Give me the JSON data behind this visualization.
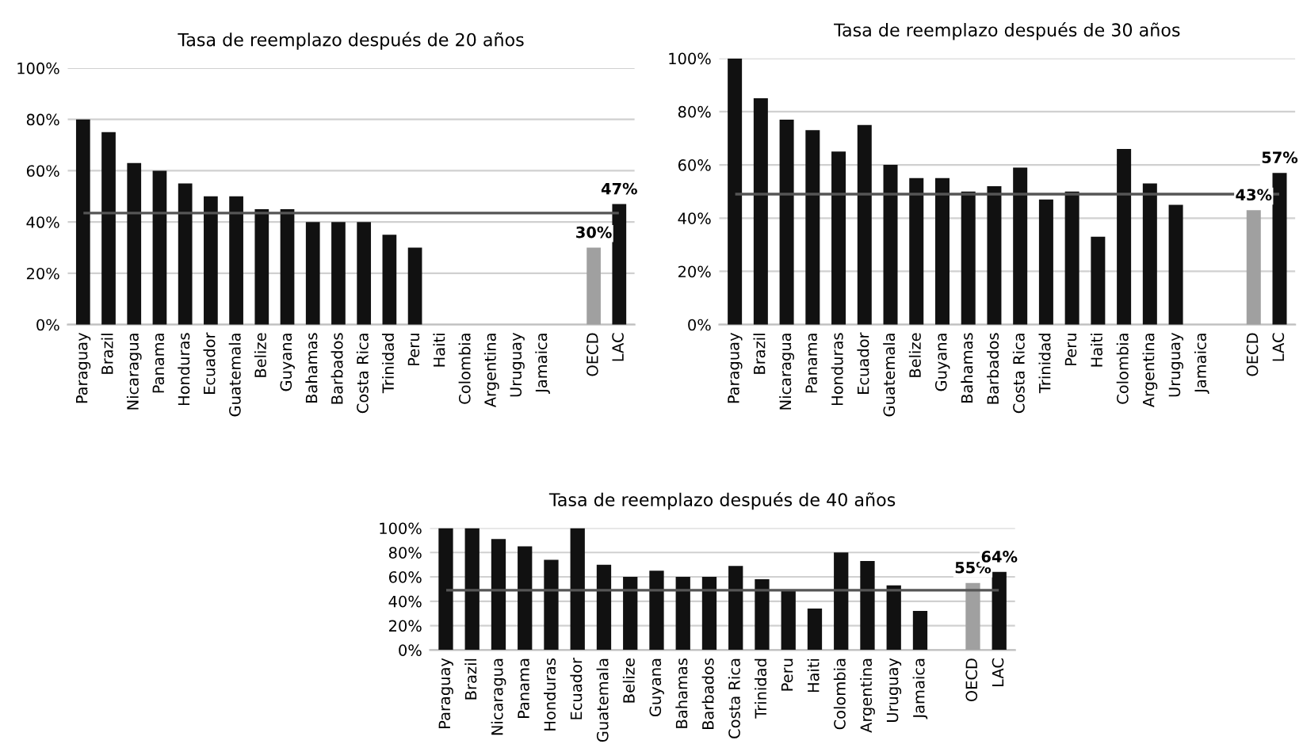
{
  "chart_data": [
    {
      "type": "bar",
      "title": "Tasa de reemplazo después de 20 años",
      "categories": [
        "Paraguay",
        "Brazil",
        "Nicaragua",
        "Panama",
        "Honduras",
        "Ecuador",
        "Guatemala",
        "Belize",
        "Guyana",
        "Bahamas",
        "Barbados",
        "Costa Rica",
        "Trinidad",
        "Peru",
        "Haiti",
        "Colombia",
        "Argentina",
        "Uruguay",
        "Jamaica",
        null,
        "OECD",
        "LAC"
      ],
      "values": [
        80,
        75,
        63,
        60,
        55,
        50,
        50,
        45,
        45,
        40,
        40,
        40,
        35,
        30,
        null,
        null,
        null,
        null,
        null,
        null,
        30,
        47
      ],
      "colors": [
        "#111111",
        "#111111",
        "#111111",
        "#111111",
        "#111111",
        "#111111",
        "#111111",
        "#111111",
        "#111111",
        "#111111",
        "#111111",
        "#111111",
        "#111111",
        "#111111",
        "#111111",
        "#111111",
        "#111111",
        "#111111",
        "#111111",
        "#111111",
        "#a0a0a0",
        "#111111"
      ],
      "value_labels": [
        null,
        null,
        null,
        null,
        null,
        null,
        null,
        null,
        null,
        null,
        null,
        null,
        null,
        null,
        null,
        null,
        null,
        null,
        null,
        null,
        "30%",
        "47%"
      ],
      "ylim": [
        0,
        100
      ],
      "yticks": [
        {
          "value": 0,
          "label": "0%"
        },
        {
          "value": 20,
          "label": "20%"
        },
        {
          "value": 40,
          "label": "40%"
        },
        {
          "value": 60,
          "label": "60%"
        },
        {
          "value": 80,
          "label": "80%"
        },
        {
          "value": 100,
          "label": "100%"
        }
      ],
      "ref_lines": [
        {
          "axis": "y",
          "value": 43.5,
          "label": null,
          "color": "#555555"
        }
      ],
      "grid": "y",
      "legend": false
    },
    {
      "type": "bar",
      "title": "Tasa de reemplazo después de 30 años",
      "categories": [
        "Paraguay",
        "Brazil",
        "Nicaragua",
        "Panama",
        "Honduras",
        "Ecuador",
        "Guatemala",
        "Belize",
        "Guyana",
        "Bahamas",
        "Barbados",
        "Costa Rica",
        "Trinidad",
        "Peru",
        "Haiti",
        "Colombia",
        "Argentina",
        "Uruguay",
        "Jamaica",
        null,
        "OECD",
        "LAC"
      ],
      "values": [
        100,
        85,
        77,
        73,
        65,
        75,
        60,
        55,
        55,
        50,
        52,
        59,
        47,
        50,
        33,
        66,
        53,
        45,
        null,
        null,
        43,
        57
      ],
      "colors": [
        "#111111",
        "#111111",
        "#111111",
        "#111111",
        "#111111",
        "#111111",
        "#111111",
        "#111111",
        "#111111",
        "#111111",
        "#111111",
        "#111111",
        "#111111",
        "#111111",
        "#111111",
        "#111111",
        "#111111",
        "#111111",
        "#111111",
        "#111111",
        "#a0a0a0",
        "#111111"
      ],
      "value_labels": [
        null,
        null,
        null,
        null,
        null,
        null,
        null,
        null,
        null,
        null,
        null,
        null,
        null,
        null,
        null,
        null,
        null,
        null,
        null,
        null,
        "43%",
        "57%"
      ],
      "ylim": [
        0,
        100
      ],
      "yticks": [
        {
          "value": 0,
          "label": "0%"
        },
        {
          "value": 20,
          "label": "20%"
        },
        {
          "value": 40,
          "label": "40%"
        },
        {
          "value": 60,
          "label": "60%"
        },
        {
          "value": 80,
          "label": "80%"
        },
        {
          "value": 100,
          "label": "100%"
        }
      ],
      "ref_lines": [
        {
          "axis": "y",
          "value": 49,
          "label": null,
          "color": "#555555"
        }
      ],
      "grid": "y",
      "legend": false
    },
    {
      "type": "bar",
      "title": "Tasa de reemplazo después de 40 años",
      "categories": [
        "Paraguay",
        "Brazil",
        "Nicaragua",
        "Panama",
        "Honduras",
        "Ecuador",
        "Guatemala",
        "Belize",
        "Guyana",
        "Bahamas",
        "Barbados",
        "Costa Rica",
        "Trinidad",
        "Peru",
        "Haiti",
        "Colombia",
        "Argentina",
        "Uruguay",
        "Jamaica",
        null,
        "OECD",
        "LAC"
      ],
      "values": [
        100,
        100,
        91,
        85,
        74,
        100,
        70,
        60,
        65,
        60,
        60,
        69,
        58,
        49,
        34,
        80,
        73,
        53,
        32,
        null,
        55,
        64
      ],
      "colors": [
        "#111111",
        "#111111",
        "#111111",
        "#111111",
        "#111111",
        "#111111",
        "#111111",
        "#111111",
        "#111111",
        "#111111",
        "#111111",
        "#111111",
        "#111111",
        "#111111",
        "#111111",
        "#111111",
        "#111111",
        "#111111",
        "#111111",
        "#111111",
        "#a0a0a0",
        "#111111"
      ],
      "value_labels": [
        null,
        null,
        null,
        null,
        null,
        null,
        null,
        null,
        null,
        null,
        null,
        null,
        null,
        null,
        null,
        null,
        null,
        null,
        null,
        null,
        "55%",
        "64%"
      ],
      "ylim": [
        0,
        100
      ],
      "yticks": [
        {
          "value": 0,
          "label": "0%"
        },
        {
          "value": 20,
          "label": "20%"
        },
        {
          "value": 40,
          "label": "40%"
        },
        {
          "value": 60,
          "label": "60%"
        },
        {
          "value": 80,
          "label": "80%"
        },
        {
          "value": 100,
          "label": "100%"
        }
      ],
      "ref_lines": [
        {
          "axis": "y",
          "value": 49,
          "label": null,
          "color": "#555555"
        }
      ],
      "grid": "y",
      "legend": false
    }
  ]
}
